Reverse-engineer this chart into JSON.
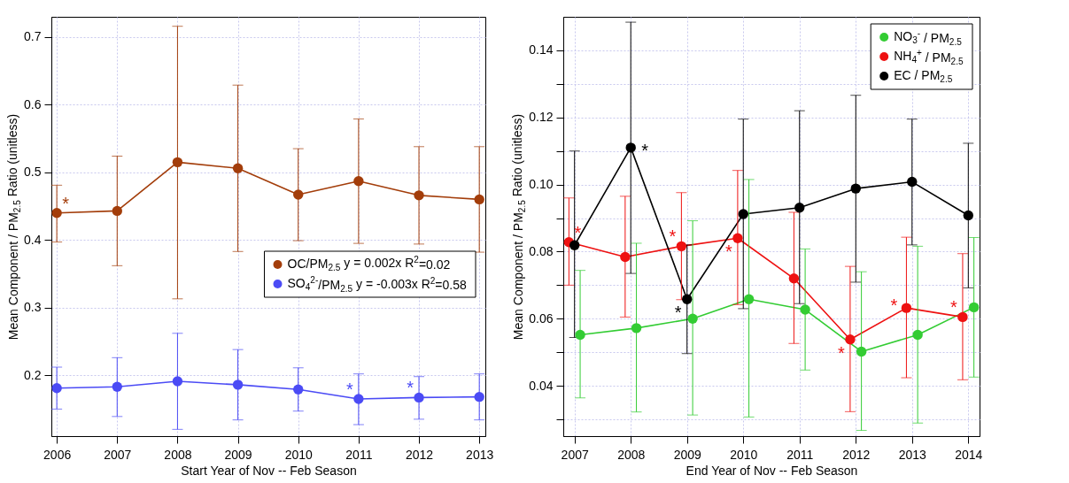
{
  "chart_data": [
    {
      "type": "line",
      "xlabel": "Start Year of Nov -- Feb Season",
      "ylabel": "Mean Component / PM$_{2.5}$ Ratio (unitless)",
      "x": [
        2006,
        2007,
        2008,
        2009,
        2010,
        2011,
        2012,
        2013
      ],
      "xlim": [
        2005.91,
        2013.1
      ],
      "xticks": [
        2006,
        2007,
        2008,
        2009,
        2010,
        2011,
        2012,
        2013
      ],
      "ylim": [
        0.11,
        0.73
      ],
      "yticks": [
        0.2,
        0.3,
        0.4,
        0.5,
        0.6,
        0.7
      ],
      "grid": true,
      "legend": "right",
      "marker": "circle",
      "series": [
        {
          "name": "OC/PM$_{2.5}$   y = 0.002x  R$^{2}$=0.02",
          "color": "#a33d0a",
          "values": [
            0.44,
            0.443,
            0.515,
            0.506,
            0.467,
            0.487,
            0.466,
            0.46
          ],
          "errors": [
            [
              0.397,
              0.481
            ],
            [
              0.362,
              0.524
            ],
            [
              0.313,
              0.716
            ],
            [
              0.383,
              0.629
            ],
            [
              0.399,
              0.535
            ],
            [
              0.395,
              0.579
            ],
            [
              0.394,
              0.538
            ],
            [
              0.382,
              0.538
            ]
          ]
        },
        {
          "name": "SO$_{4}$$^{2-}$/PM$_{2.5}$   y = -0.003x   R$^{2}$=0.58",
          "color": "#4b4bf5",
          "values": [
            0.181,
            0.183,
            0.191,
            0.186,
            0.179,
            0.165,
            0.167,
            0.168
          ],
          "errors": [
            [
              0.15,
              0.212
            ],
            [
              0.139,
              0.226
            ],
            [
              0.12,
              0.262
            ],
            [
              0.134,
              0.238
            ],
            [
              0.147,
              0.211
            ],
            [
              0.127,
              0.202
            ],
            [
              0.135,
              0.198
            ],
            [
              0.134,
              0.202
            ]
          ]
        }
      ],
      "annotations": [
        {
          "text": "*",
          "x": 2006,
          "y": 0.44
        },
        {
          "text": "*",
          "x": 2011,
          "y": 0.165
        },
        {
          "text": "*",
          "x": 2012,
          "y": 0.167
        }
      ]
    },
    {
      "type": "line",
      "xlabel": "End Year of Nov -- Feb Season",
      "ylabel": "Mean Component / PM$_{2.5}$ Ratio (unitless)",
      "xlim": [
        2006.8,
        2014.2
      ],
      "xticks": [
        2007,
        2008,
        2009,
        2010,
        2011,
        2012,
        2013,
        2014
      ],
      "ylim": [
        0.025,
        0.15
      ],
      "yticks": [
        {
          "value": 0.03,
          "label": null
        },
        {
          "value": 0.04,
          "label": "0.04"
        },
        {
          "value": 0.05,
          "label": null
        },
        {
          "value": 0.06,
          "label": "0.06"
        },
        {
          "value": 0.07,
          "label": null
        },
        {
          "value": 0.08,
          "label": "0.08"
        },
        {
          "value": 0.09,
          "label": null
        },
        {
          "value": 0.1,
          "label": "0.10"
        },
        {
          "value": 0.11,
          "label": null
        },
        {
          "value": 0.12,
          "label": "0.12"
        },
        {
          "value": 0.13,
          "label": null
        },
        {
          "value": 0.14,
          "label": "0.14"
        }
      ],
      "grid": true,
      "legend": "top right",
      "marker": "circle",
      "series": [
        {
          "name": "NO$_{3}$$^{-}$ / PM$_{2.5}$",
          "color": "#33cc33",
          "x": [
            2007.1,
            2008.1,
            2009.1,
            2010.1,
            2011.1,
            2012.1,
            2013.1,
            2014.1
          ],
          "values": [
            0.0552,
            0.0572,
            0.06,
            0.0658,
            0.0627,
            0.0502,
            0.0552,
            0.0634
          ],
          "errors": [
            [
              0.0364,
              0.0744
            ],
            [
              0.0322,
              0.0825
            ],
            [
              0.0313,
              0.0892
            ],
            [
              0.0307,
              0.1015
            ],
            [
              0.0447,
              0.0808
            ],
            [
              0.0267,
              0.074
            ],
            [
              0.0289,
              0.0816
            ],
            [
              0.0426,
              0.0842
            ]
          ]
        },
        {
          "name": "NH$_{4}$$^{+}$ / PM$_{2.5}$",
          "color": "#ee1111",
          "x": [
            2006.9,
            2007.9,
            2008.9,
            2009.9,
            2010.9,
            2011.9,
            2012.9,
            2013.9
          ],
          "values": [
            0.0828,
            0.0784,
            0.0816,
            0.084,
            0.072,
            0.0538,
            0.0632,
            0.0605
          ],
          "errors": [
            [
              0.07,
              0.096
            ],
            [
              0.0605,
              0.0965
            ],
            [
              0.0657,
              0.0976
            ],
            [
              0.0642,
              0.1042
            ],
            [
              0.0526,
              0.0917
            ],
            [
              0.0323,
              0.0756
            ],
            [
              0.0424,
              0.0843
            ],
            [
              0.0418,
              0.0794
            ]
          ]
        },
        {
          "name": "EC / PM$_{2.5}$",
          "color": "#000000",
          "x": [
            2007,
            2008,
            2009,
            2010,
            2011,
            2012,
            2013,
            2014
          ],
          "values": [
            0.0819,
            0.111,
            0.0658,
            0.0912,
            0.0931,
            0.0988,
            0.1008,
            0.0908
          ],
          "errors": [
            [
              0.0544,
              0.11
            ],
            [
              0.0735,
              0.1484
            ],
            [
              0.0496,
              0.082
            ],
            [
              0.063,
              0.1195
            ],
            [
              0.0645,
              0.122
            ],
            [
              0.0709,
              0.1266
            ],
            [
              0.082,
              0.1195
            ],
            [
              0.0692,
              0.1123
            ]
          ]
        }
      ],
      "annotations": [
        {
          "text": "*",
          "x": 2006.9,
          "y": 0.0828
        },
        {
          "text": "*",
          "x": 2008,
          "y": 0.111
        },
        {
          "text": "*",
          "x": 2008.9,
          "y": 0.0816
        },
        {
          "text": "*",
          "x": 2009,
          "y": 0.0658
        },
        {
          "text": "*",
          "x": 2009.9,
          "y": 0.084
        },
        {
          "text": "*",
          "x": 2011.9,
          "y": 0.0538
        },
        {
          "text": "*",
          "x": 2012.9,
          "y": 0.0632
        },
        {
          "text": "*",
          "x": 2013.9,
          "y": 0.0605
        }
      ]
    }
  ]
}
